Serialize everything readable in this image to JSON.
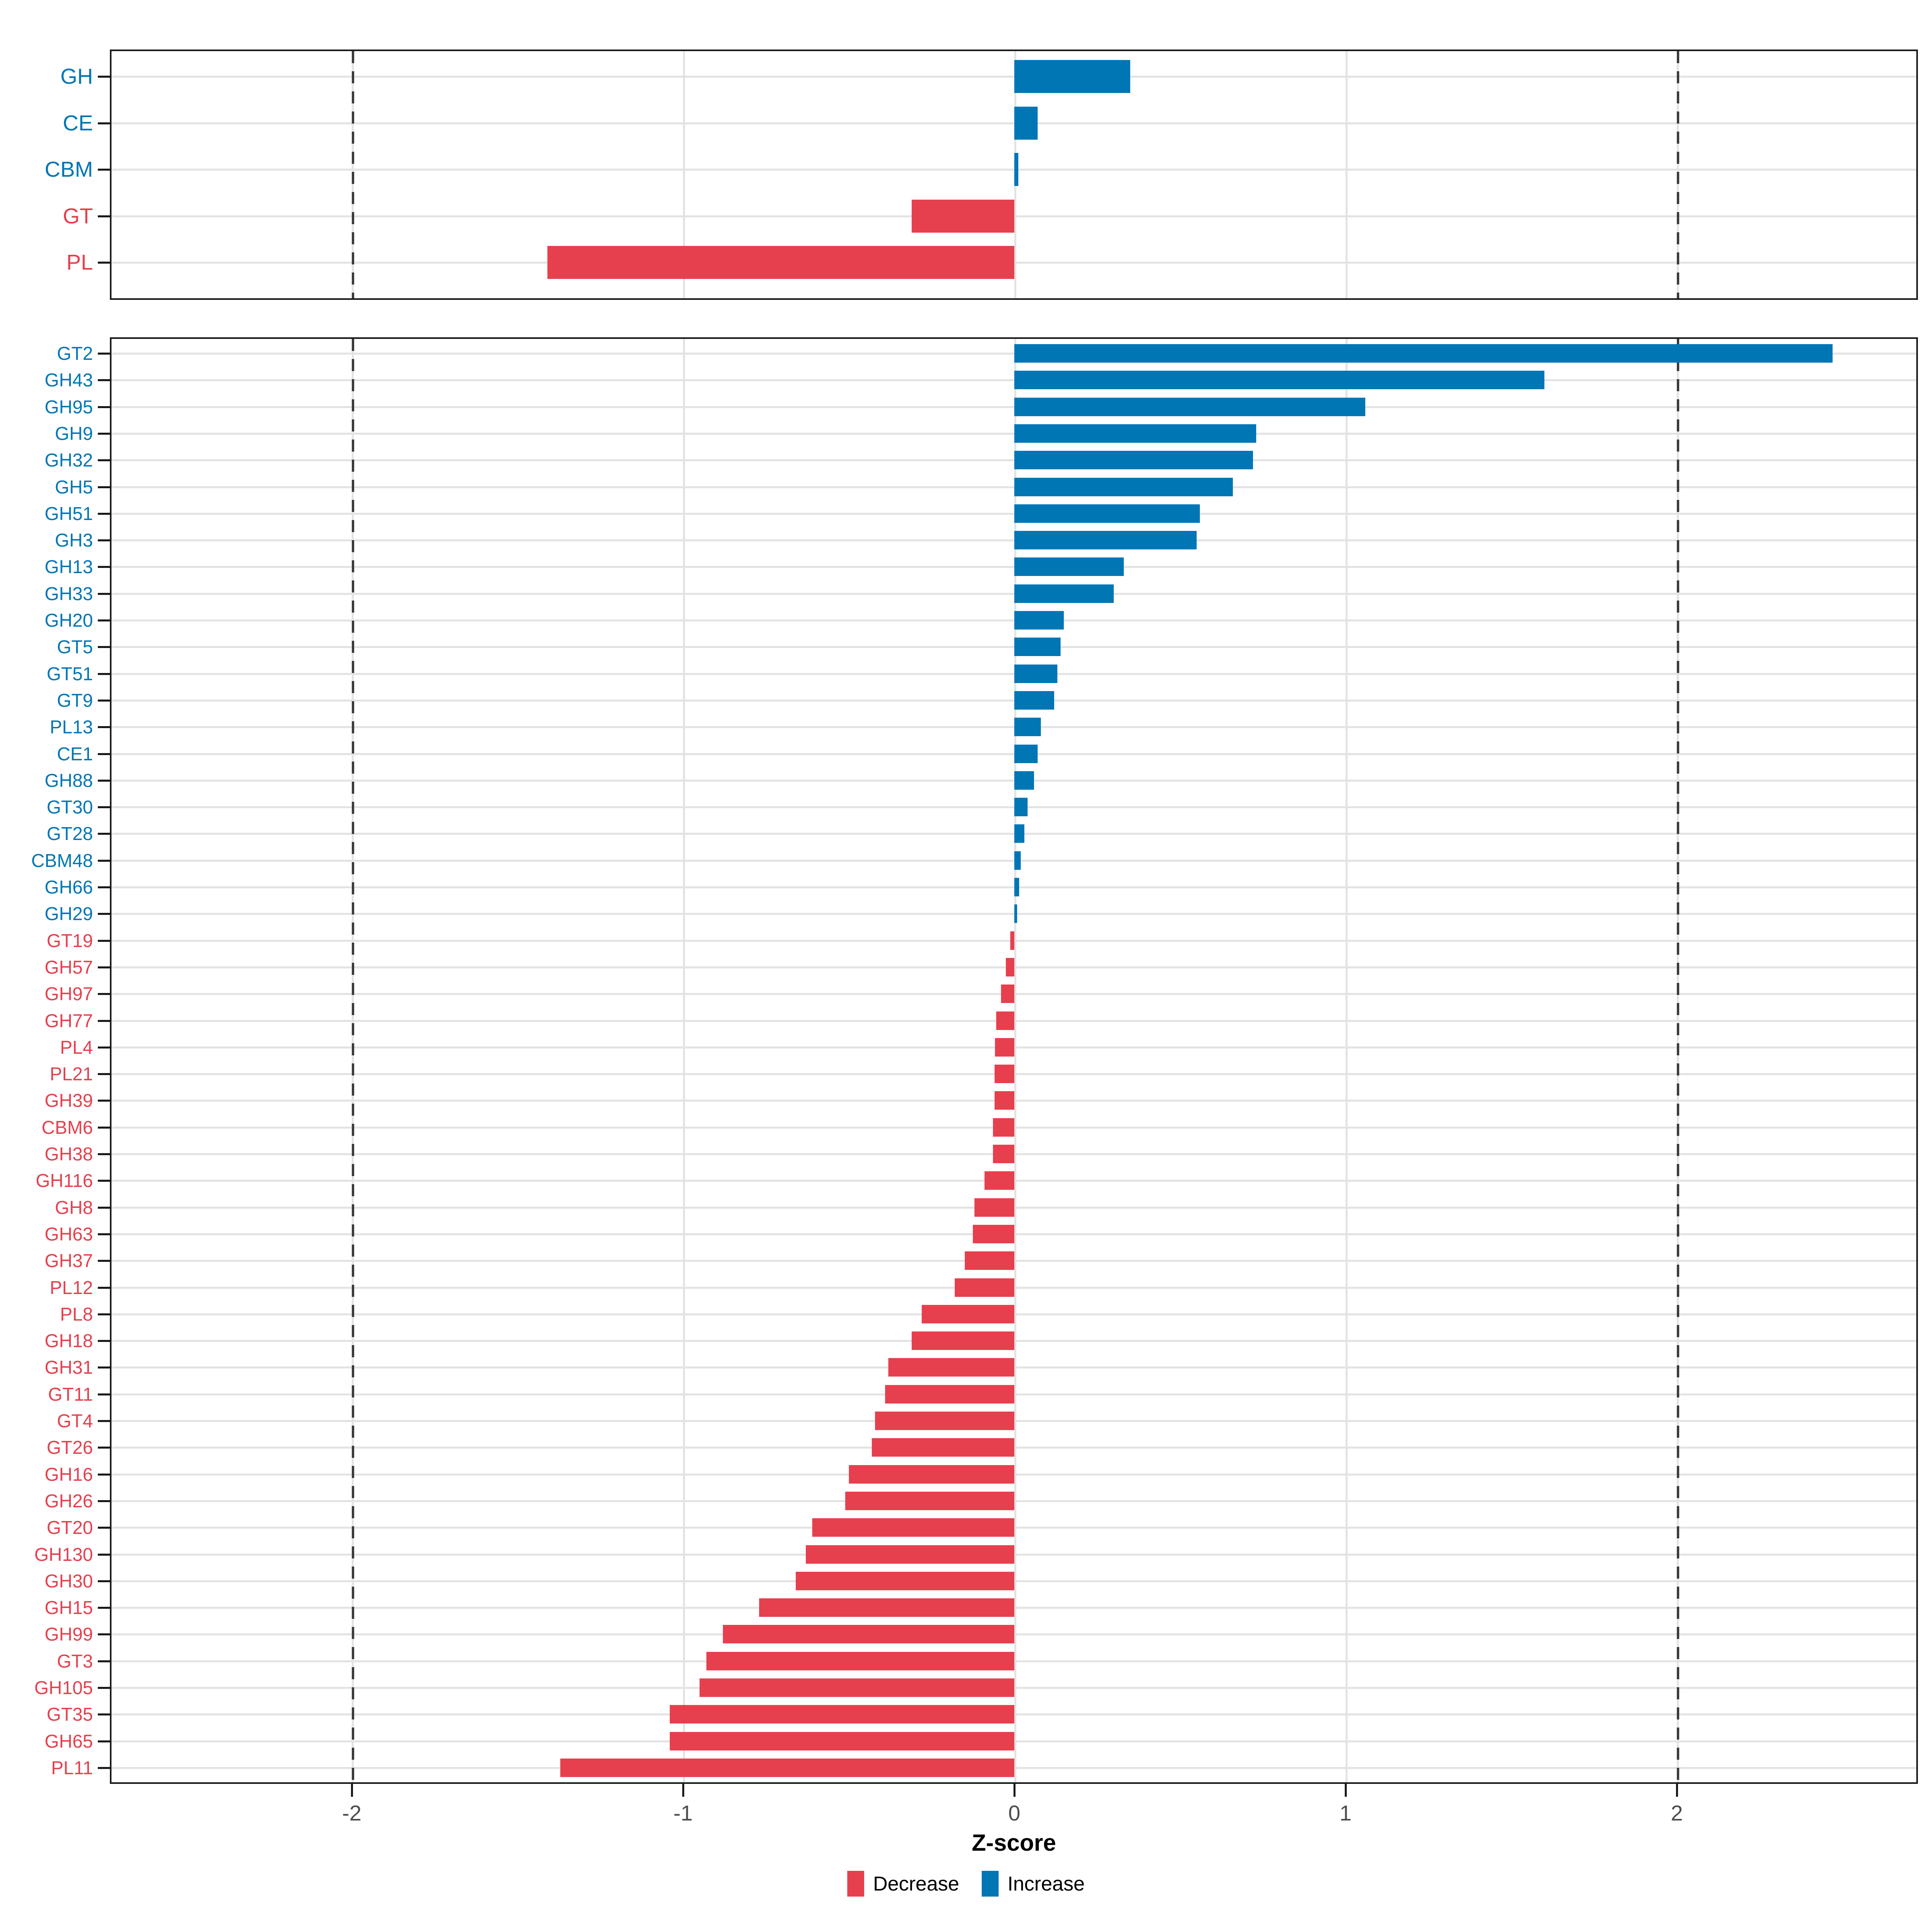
{
  "chart_data": {
    "type": "bar",
    "orientation": "horizontal",
    "xlabel": "Z-score",
    "x_ticks": [
      "-2",
      "-1",
      "0",
      "1",
      "2"
    ],
    "x_tick_values": [
      -2,
      -1,
      0,
      1,
      2
    ],
    "x_range": [
      -2.73,
      2.73
    ],
    "reference_lines": [
      -2,
      2
    ],
    "grid": true,
    "legend_position": "bottom",
    "legend": [
      {
        "label": "Decrease",
        "color": "#E6404E"
      },
      {
        "label": "Increase",
        "color": "#0076B5"
      }
    ],
    "panels": [
      {
        "name": "summary",
        "categories": [
          "GH",
          "CE",
          "CBM",
          "GT",
          "PL"
        ],
        "values": [
          0.35,
          0.07,
          0.012,
          -0.31,
          -1.41
        ]
      },
      {
        "name": "families",
        "categories": [
          "GT2",
          "GH43",
          "GH95",
          "GH9",
          "GH32",
          "GH5",
          "GH51",
          "GH3",
          "GH13",
          "GH33",
          "GH20",
          "GT5",
          "GT51",
          "GT9",
          "PL13",
          "CE1",
          "GH88",
          "GT30",
          "GT28",
          "CBM48",
          "GH66",
          "GH29",
          "GT19",
          "GH57",
          "GH97",
          "GH77",
          "PL4",
          "PL21",
          "GH39",
          "CBM6",
          "GH38",
          "GH116",
          "GH8",
          "GH63",
          "GH37",
          "PL12",
          "PL8",
          "GH18",
          "GH31",
          "GT11",
          "GT4",
          "GT26",
          "GH16",
          "GH26",
          "GT20",
          "GH130",
          "GH30",
          "GH15",
          "GH99",
          "GT3",
          "GH105",
          "GT35",
          "GH65",
          "PL11"
        ],
        "values": [
          2.47,
          1.6,
          1.06,
          0.73,
          0.72,
          0.66,
          0.56,
          0.55,
          0.33,
          0.3,
          0.15,
          0.14,
          0.13,
          0.12,
          0.08,
          0.07,
          0.06,
          0.04,
          0.03,
          0.02,
          0.015,
          0.008,
          -0.012,
          -0.025,
          -0.04,
          -0.055,
          -0.058,
          -0.06,
          -0.06,
          -0.065,
          -0.065,
          -0.09,
          -0.12,
          -0.125,
          -0.15,
          -0.18,
          -0.28,
          -0.31,
          -0.38,
          -0.39,
          -0.42,
          -0.43,
          -0.5,
          -0.51,
          -0.61,
          -0.63,
          -0.66,
          -0.77,
          -0.88,
          -0.93,
          -0.95,
          -1.04,
          -1.04,
          -1.37
        ]
      }
    ]
  },
  "colors": {
    "increase": "#0076B5",
    "decrease": "#E6404E",
    "grid": "#E3E3E3",
    "axis_text": "#4D4D4D",
    "panel_border": "#1A1A1A",
    "reference_line": "#3D3D3D"
  }
}
